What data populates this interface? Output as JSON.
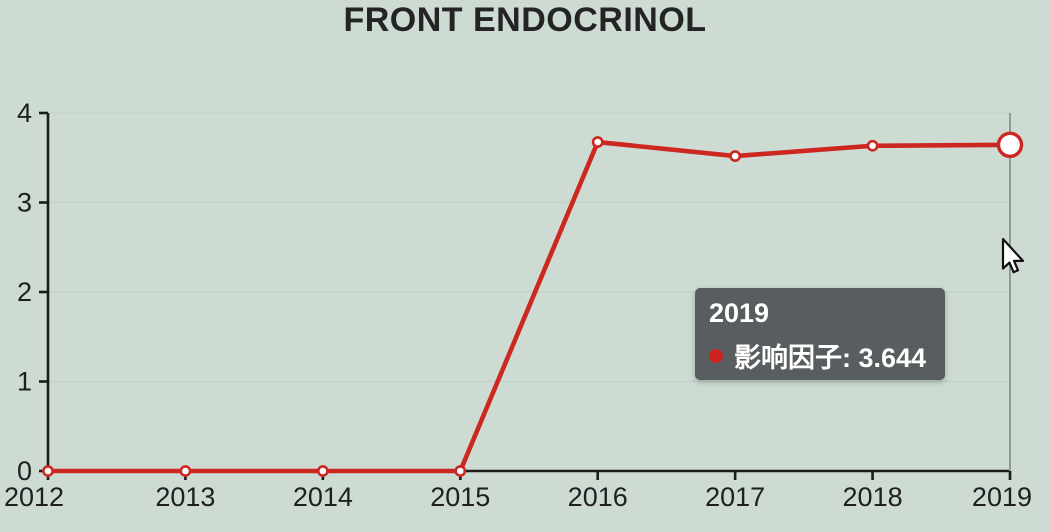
{
  "title": "FRONT ENDOCRINOL",
  "chart_data": {
    "type": "line",
    "title": "FRONT ENDOCRINOL",
    "x": [
      2012,
      2013,
      2014,
      2015,
      2016,
      2017,
      2018,
      2019
    ],
    "series": [
      {
        "name": "影响因子",
        "values": [
          0,
          0,
          0,
          0,
          3.675,
          3.519,
          3.634,
          3.644
        ],
        "color": "#cd2722"
      }
    ],
    "xlabel": "",
    "ylabel": "",
    "ylim": [
      0,
      4
    ],
    "yticks": [
      0,
      1,
      2,
      3,
      4
    ],
    "grid": true,
    "legend_position": "none",
    "highlighted_x": 2019
  },
  "tooltip": {
    "year": "2019",
    "series_label": "影响因子",
    "value": "3.644",
    "text": "影响因子: 3.644"
  },
  "colors": {
    "background": "#cddbd3",
    "axis": "#1c1c1c",
    "grid": "#b9cac2",
    "line": "#cd2722",
    "marker_fill": "#ffffff",
    "crosshair": "#8f9b97",
    "tooltip_background": "#54595b",
    "tooltip_dot": "#cc2421"
  }
}
